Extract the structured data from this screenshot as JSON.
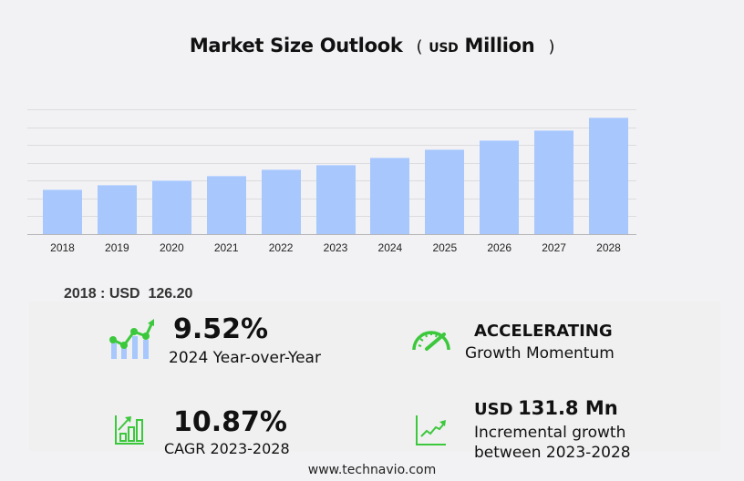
{
  "header": {
    "title": "Market Size Outlook",
    "unit_open": "(",
    "unit_small": "USD",
    "unit_big": "Million",
    "unit_close": ")"
  },
  "chart_data": {
    "type": "bar",
    "title": "Market Size Outlook (USD Million)",
    "xlabel": "",
    "ylabel": "USD Million",
    "categories": [
      "2018",
      "2019",
      "2020",
      "2021",
      "2022",
      "2023",
      "2024",
      "2025",
      "2026",
      "2027",
      "2028"
    ],
    "values": [
      126.2,
      139.1,
      152.0,
      164.8,
      180.3,
      195.1,
      213.7,
      236.9,
      262.7,
      291.2,
      326.9
    ],
    "ylim": [
      0,
      350
    ],
    "grid": true,
    "gridline_step": 50,
    "bar_color": "#a7c7fd",
    "legend": null
  },
  "stats": {
    "base_year_label": "2018 : USD  126.20",
    "yoy": {
      "value": "9.52%",
      "label": "2024 Year-over-Year",
      "icon": "growth-chart-icon"
    },
    "momentum": {
      "value": "ACCELERATING",
      "label": "Growth Momentum",
      "icon": "speedometer-icon"
    },
    "cagr": {
      "value": "10.87%",
      "label": "CAGR 2023-2028",
      "icon": "bar-chart-arrow-icon"
    },
    "incremental": {
      "prefix": "USD",
      "value": "131.8 Mn",
      "label_line1": "Incremental growth",
      "label_line2": "between 2023-2028",
      "icon": "trend-line-icon"
    }
  },
  "colors": {
    "accent_green": "#3cc83c",
    "bar_blue": "#a7c7fd"
  },
  "footer": {
    "url": "www.technavio.com"
  }
}
